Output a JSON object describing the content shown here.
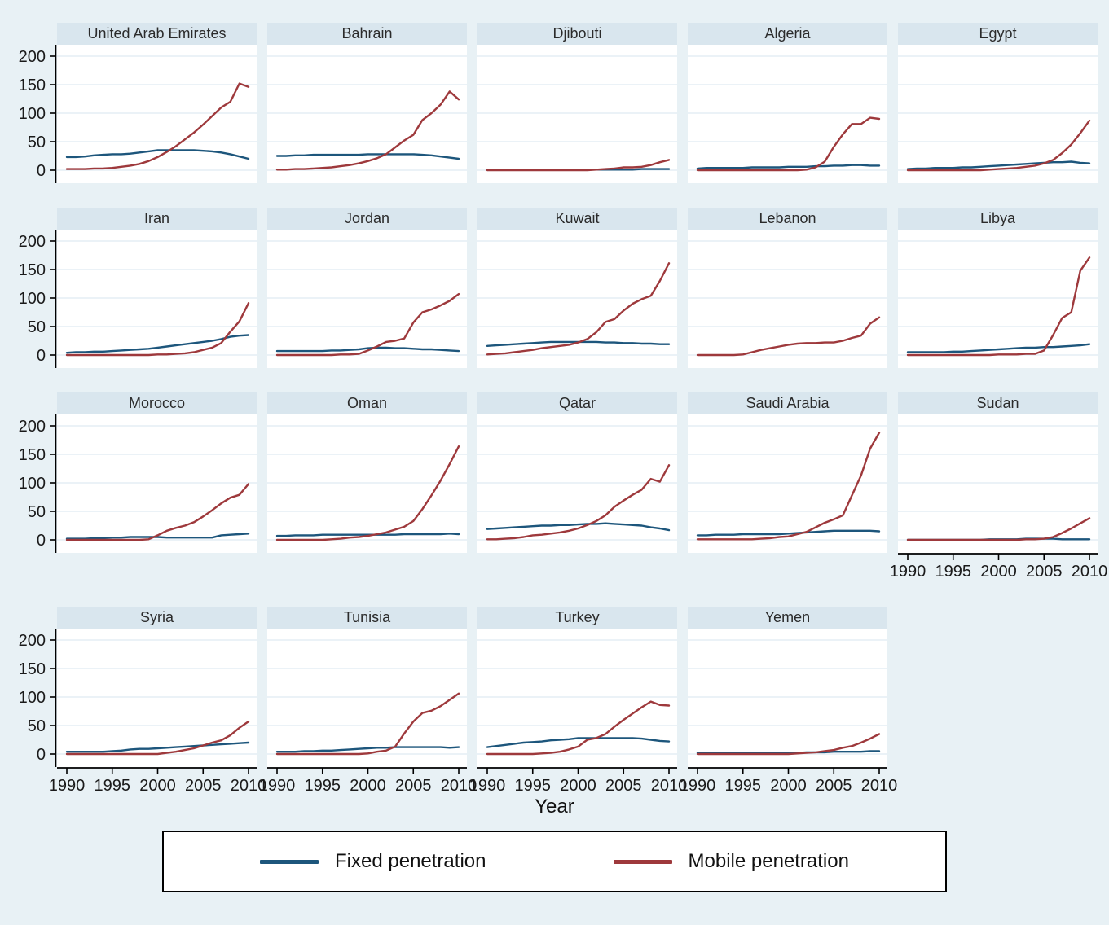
{
  "chart_data": {
    "type": "line",
    "title": "",
    "xlabel": "Year",
    "x": [
      1990,
      1991,
      1992,
      1993,
      1994,
      1995,
      1996,
      1997,
      1998,
      1999,
      2000,
      2001,
      2002,
      2003,
      2004,
      2005,
      2006,
      2007,
      2008,
      2009,
      2010
    ],
    "x_ticks": [
      1990,
      1995,
      2000,
      2005,
      2010
    ],
    "y_ticks": [
      0,
      50,
      100,
      150,
      200
    ],
    "ylim": [
      0,
      200
    ],
    "series_names": [
      "Fixed penetration",
      "Mobile penetration"
    ],
    "colors": {
      "fixed": "#1d567c",
      "mobile": "#9e393c",
      "gridline": "#dfeaf2",
      "plot_bg": "#ffffff",
      "page_bg": "#e8f1f5",
      "title_band": "#d9e6ee",
      "axis": "#000000",
      "tick_text": "#1a1a1a"
    },
    "layout": {
      "rows": [
        5,
        5,
        5,
        4
      ],
      "grid": "horizontal",
      "legend_position": "bottom",
      "x_axis_panels": [
        "Sudan",
        "Syria",
        "Tunisia",
        "Turkey",
        "Yemen"
      ]
    },
    "panels": [
      {
        "country": "United Arab Emirates",
        "fixed": [
          23,
          23,
          24,
          26,
          27,
          28,
          28,
          29,
          31,
          33,
          35,
          35,
          35,
          35,
          35,
          34,
          33,
          31,
          28,
          24,
          20
        ],
        "mobile": [
          2,
          2,
          2,
          3,
          3,
          4,
          6,
          8,
          11,
          16,
          23,
          32,
          42,
          54,
          66,
          80,
          95,
          110,
          120,
          152,
          146
        ]
      },
      {
        "country": "Bahrain",
        "fixed": [
          25,
          25,
          26,
          26,
          27,
          27,
          27,
          27,
          27,
          27,
          28,
          28,
          28,
          28,
          28,
          28,
          27,
          26,
          24,
          22,
          20
        ],
        "mobile": [
          1,
          1,
          2,
          2,
          3,
          4,
          5,
          7,
          9,
          12,
          16,
          21,
          28,
          40,
          52,
          62,
          88,
          100,
          115,
          138,
          124
        ]
      },
      {
        "country": "Djibouti",
        "fixed": [
          1,
          1,
          1,
          1,
          1,
          1,
          1,
          1,
          1,
          1,
          1,
          1,
          1,
          1,
          1,
          1,
          1,
          2,
          2,
          2,
          2
        ],
        "mobile": [
          0,
          0,
          0,
          0,
          0,
          0,
          0,
          0,
          0,
          0,
          0,
          0,
          1,
          2,
          3,
          5,
          5,
          6,
          9,
          14,
          18
        ]
      },
      {
        "country": "Algeria",
        "fixed": [
          3,
          4,
          4,
          4,
          4,
          4,
          5,
          5,
          5,
          5,
          6,
          6,
          6,
          7,
          7,
          8,
          8,
          9,
          9,
          8,
          8
        ],
        "mobile": [
          0,
          0,
          0,
          0,
          0,
          0,
          0,
          0,
          0,
          0,
          0,
          0,
          1,
          5,
          15,
          41,
          63,
          81,
          81,
          92,
          90
        ]
      },
      {
        "country": "Egypt",
        "fixed": [
          2,
          3,
          3,
          4,
          4,
          4,
          5,
          5,
          6,
          7,
          8,
          9,
          10,
          11,
          12,
          13,
          14,
          14,
          15,
          13,
          12
        ],
        "mobile": [
          0,
          0,
          0,
          0,
          0,
          0,
          0,
          0,
          0,
          1,
          2,
          3,
          4,
          6,
          8,
          12,
          18,
          30,
          45,
          65,
          87
        ]
      },
      {
        "country": "Iran",
        "fixed": [
          4,
          5,
          5,
          6,
          6,
          7,
          8,
          9,
          10,
          11,
          13,
          15,
          17,
          19,
          21,
          23,
          25,
          28,
          32,
          34,
          35
        ],
        "mobile": [
          0,
          0,
          0,
          0,
          0,
          0,
          0,
          0,
          0,
          0,
          1,
          1,
          2,
          3,
          5,
          9,
          13,
          21,
          41,
          59,
          91
        ]
      },
      {
        "country": "Jordan",
        "fixed": [
          7,
          7,
          7,
          7,
          7,
          7,
          8,
          8,
          9,
          10,
          12,
          13,
          13,
          12,
          12,
          11,
          10,
          10,
          9,
          8,
          7
        ],
        "mobile": [
          0,
          0,
          0,
          0,
          0,
          0,
          0,
          1,
          1,
          2,
          8,
          15,
          23,
          25,
          29,
          57,
          75,
          80,
          87,
          95,
          107
        ]
      },
      {
        "country": "Kuwait",
        "fixed": [
          16,
          17,
          18,
          19,
          20,
          21,
          22,
          23,
          23,
          23,
          23,
          23,
          23,
          22,
          22,
          21,
          21,
          20,
          20,
          19,
          19
        ],
        "mobile": [
          1,
          2,
          3,
          5,
          7,
          9,
          12,
          14,
          16,
          18,
          22,
          28,
          40,
          58,
          63,
          78,
          90,
          98,
          104,
          130,
          161
        ]
      },
      {
        "country": "Lebanon",
        "fixed": [
          null,
          null,
          null,
          null,
          null,
          null,
          null,
          null,
          null,
          null,
          null,
          null,
          null,
          null,
          null,
          null,
          null,
          null,
          null,
          null,
          null
        ],
        "mobile": [
          0,
          0,
          0,
          0,
          0,
          1,
          5,
          9,
          12,
          15,
          18,
          20,
          21,
          21,
          22,
          22,
          25,
          30,
          34,
          55,
          66
        ]
      },
      {
        "country": "Libya",
        "fixed": [
          5,
          5,
          5,
          5,
          5,
          6,
          6,
          7,
          8,
          9,
          10,
          11,
          12,
          13,
          13,
          14,
          14,
          15,
          16,
          17,
          19
        ],
        "mobile": [
          0,
          0,
          0,
          0,
          0,
          0,
          0,
          0,
          0,
          0,
          1,
          1,
          1,
          2,
          2,
          8,
          35,
          65,
          75,
          148,
          171
        ]
      },
      {
        "country": "Morocco",
        "fixed": [
          2,
          2,
          2,
          3,
          3,
          4,
          4,
          5,
          5,
          5,
          5,
          4,
          4,
          4,
          4,
          4,
          4,
          8,
          9,
          10,
          11
        ],
        "mobile": [
          0,
          0,
          0,
          0,
          0,
          0,
          0,
          0,
          0,
          1,
          8,
          16,
          21,
          25,
          31,
          41,
          52,
          64,
          74,
          79,
          98
        ]
      },
      {
        "country": "Oman",
        "fixed": [
          7,
          7,
          8,
          8,
          8,
          9,
          9,
          9,
          9,
          9,
          9,
          9,
          9,
          9,
          10,
          10,
          10,
          10,
          10,
          11,
          10
        ],
        "mobile": [
          0,
          0,
          0,
          0,
          0,
          0,
          1,
          2,
          4,
          5,
          7,
          10,
          13,
          18,
          23,
          33,
          54,
          78,
          104,
          133,
          164
        ]
      },
      {
        "country": "Qatar",
        "fixed": [
          19,
          20,
          21,
          22,
          23,
          24,
          25,
          25,
          26,
          26,
          27,
          28,
          28,
          29,
          28,
          27,
          26,
          25,
          22,
          20,
          17
        ],
        "mobile": [
          1,
          1,
          2,
          3,
          5,
          8,
          9,
          11,
          13,
          16,
          20,
          26,
          33,
          43,
          58,
          69,
          79,
          88,
          107,
          102,
          131
        ]
      },
      {
        "country": "Saudi Arabia",
        "fixed": [
          8,
          8,
          9,
          9,
          9,
          10,
          10,
          10,
          10,
          10,
          11,
          12,
          13,
          14,
          15,
          16,
          16,
          16,
          16,
          16,
          15
        ],
        "mobile": [
          1,
          1,
          1,
          1,
          1,
          1,
          1,
          2,
          3,
          5,
          6,
          10,
          14,
          22,
          30,
          36,
          43,
          78,
          113,
          160,
          188
        ]
      },
      {
        "country": "Sudan",
        "fixed": [
          0,
          0,
          0,
          0,
          0,
          0,
          0,
          0,
          0,
          1,
          1,
          1,
          1,
          2,
          2,
          2,
          2,
          1,
          1,
          1,
          1
        ],
        "mobile": [
          0,
          0,
          0,
          0,
          0,
          0,
          0,
          0,
          0,
          0,
          0,
          0,
          0,
          1,
          1,
          2,
          5,
          12,
          20,
          29,
          38
        ]
      },
      {
        "country": "Syria",
        "fixed": [
          4,
          4,
          4,
          4,
          4,
          5,
          6,
          8,
          9,
          9,
          10,
          11,
          12,
          13,
          14,
          15,
          16,
          17,
          18,
          19,
          20
        ],
        "mobile": [
          0,
          0,
          0,
          0,
          0,
          0,
          0,
          0,
          0,
          0,
          0,
          2,
          4,
          7,
          10,
          15,
          20,
          24,
          33,
          46,
          57
        ]
      },
      {
        "country": "Tunisia",
        "fixed": [
          4,
          4,
          4,
          5,
          5,
          6,
          6,
          7,
          8,
          9,
          10,
          11,
          11,
          12,
          12,
          12,
          12,
          12,
          12,
          11,
          12
        ],
        "mobile": [
          0,
          0,
          0,
          0,
          0,
          0,
          0,
          0,
          0,
          0,
          1,
          4,
          6,
          13,
          36,
          57,
          72,
          76,
          84,
          95,
          106
        ]
      },
      {
        "country": "Turkey",
        "fixed": [
          12,
          14,
          16,
          18,
          20,
          21,
          22,
          24,
          25,
          26,
          28,
          28,
          28,
          28,
          28,
          28,
          28,
          27,
          25,
          23,
          22
        ],
        "mobile": [
          0,
          0,
          0,
          0,
          0,
          0,
          1,
          2,
          4,
          8,
          13,
          25,
          28,
          35,
          48,
          60,
          71,
          82,
          92,
          86,
          85
        ]
      },
      {
        "country": "Yemen",
        "fixed": [
          2,
          2,
          2,
          2,
          2,
          2,
          2,
          2,
          2,
          2,
          2,
          2,
          3,
          3,
          3,
          4,
          4,
          4,
          4,
          5,
          5
        ],
        "mobile": [
          0,
          0,
          0,
          0,
          0,
          0,
          0,
          0,
          0,
          0,
          0,
          1,
          2,
          3,
          5,
          7,
          11,
          14,
          20,
          27,
          35
        ]
      }
    ]
  },
  "legend": {
    "fixed_label": "Fixed penetration",
    "mobile_label": "Mobile penetration"
  }
}
